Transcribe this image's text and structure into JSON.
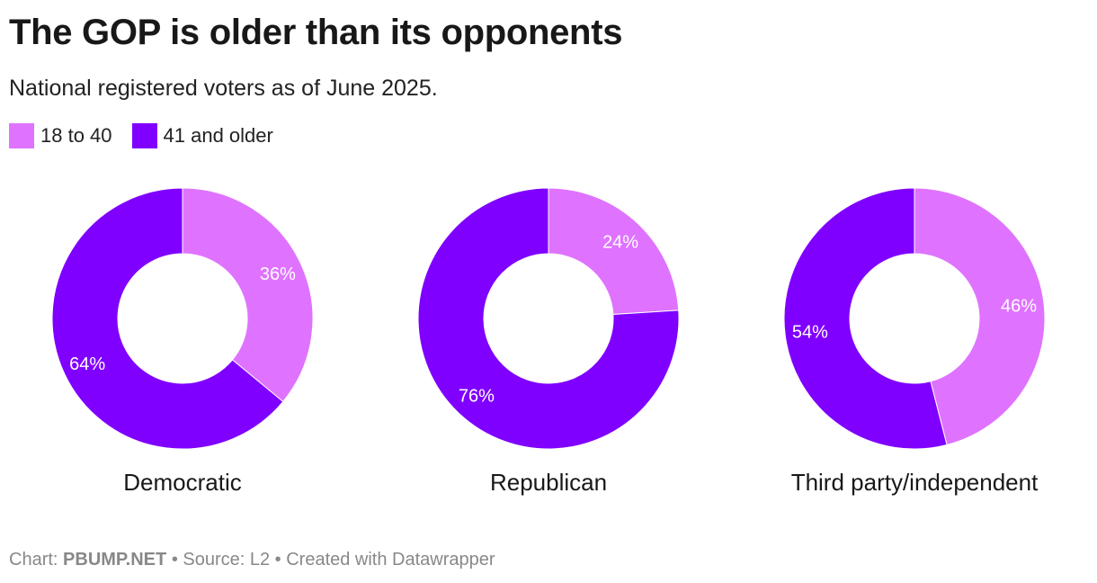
{
  "title": "The GOP is older than its opponents",
  "subtitle": "National registered voters as of June 2025.",
  "legend": [
    {
      "label": "18 to 40",
      "color": "#df73ff"
    },
    {
      "label": "41 and older",
      "color": "#8000ff"
    }
  ],
  "chart_data": {
    "type": "pie",
    "variant": "donut",
    "series_names": [
      "18 to 40",
      "41 and older"
    ],
    "colors": [
      "#df73ff",
      "#8000ff"
    ],
    "charts": [
      {
        "name": "Democratic",
        "values": [
          36,
          64
        ],
        "labels": [
          "36%",
          "64%"
        ]
      },
      {
        "name": "Republican",
        "values": [
          24,
          76
        ],
        "labels": [
          "24%",
          "76%"
        ]
      },
      {
        "name": "Third party/independent",
        "values": [
          46,
          54
        ],
        "labels": [
          "46%",
          "54%"
        ]
      }
    ]
  },
  "footer": {
    "prefix": "Chart:",
    "brand": "PBUMP.NET",
    "source": "• Source: L2 • Created with Datawrapper"
  }
}
